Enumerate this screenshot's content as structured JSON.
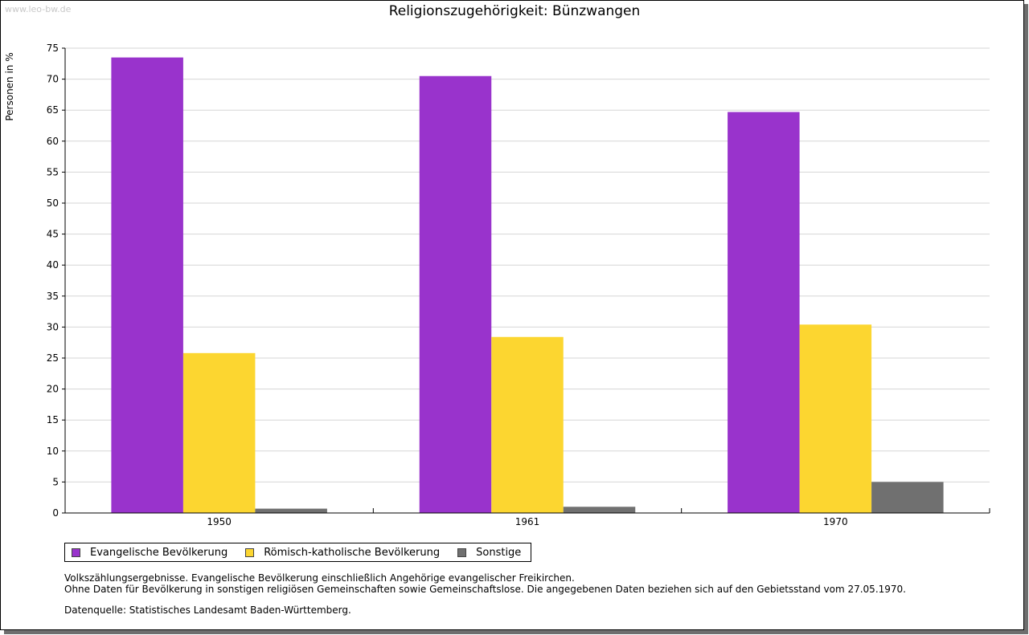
{
  "watermark": "www.leo-bw.de",
  "chart_data": {
    "type": "bar",
    "title": "Religionszugehörigkeit: Bünzwangen",
    "xlabel": "",
    "ylabel": "Personen in %",
    "categories": [
      "1950",
      "1961",
      "1970"
    ],
    "ylim": [
      0,
      75
    ],
    "yticks": [
      0,
      5,
      10,
      15,
      20,
      25,
      30,
      35,
      40,
      45,
      50,
      55,
      60,
      65,
      70,
      75
    ],
    "grid": true,
    "legend_position": "bottom-left",
    "series": [
      {
        "name": "Evangelische Bevölkerung",
        "color": "#9933CC",
        "values": [
          73.5,
          70.5,
          64.7
        ]
      },
      {
        "name": "Römisch-katholische Bevölkerung",
        "color": "#FCD630",
        "values": [
          25.8,
          28.4,
          30.4
        ]
      },
      {
        "name": "Sonstige",
        "color": "#707070",
        "values": [
          0.7,
          1.0,
          5.0
        ]
      }
    ]
  },
  "notes": {
    "line1": "Volkszählungsergebnisse. Evangelische Bevölkerung einschließlich Angehörige evangelischer Freikirchen.",
    "line2": "Ohne Daten für Bevölkerung in sonstigen religiösen Gemeinschaften sowie Gemeinschaftslose. Die angegebenen Daten beziehen sich auf den Gebietsstand vom 27.05.1970.",
    "source": "Datenquelle: Statistisches Landesamt Baden-Württemberg."
  }
}
